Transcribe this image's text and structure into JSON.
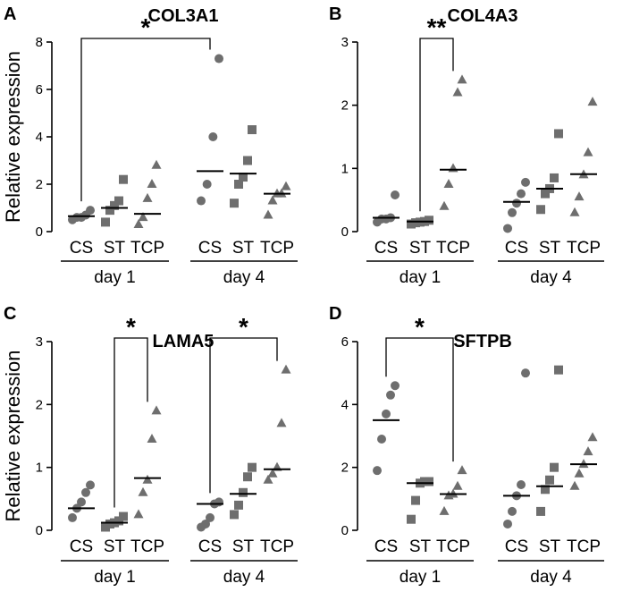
{
  "figure": {
    "y_axis_label": "Relative expression",
    "marker_color": "#6e6e6e"
  },
  "chart_data": [
    {
      "type": "scatter",
      "panel": "A",
      "title": "COL3A1",
      "ylabel": "Relative expression",
      "ylim": [
        0,
        8
      ],
      "yticks": [
        0,
        2,
        4,
        6,
        8
      ],
      "categories": [
        "CS",
        "ST",
        "TCP",
        "CS",
        "ST",
        "TCP"
      ],
      "groups": [
        "day 1",
        "day 4"
      ],
      "markers": [
        "circle",
        "square",
        "triangle",
        "circle",
        "square",
        "triangle"
      ],
      "points": [
        [
          0.5,
          0.6,
          0.6,
          0.7,
          0.9
        ],
        [
          0.4,
          0.9,
          1.1,
          1.3,
          2.2
        ],
        [
          0.3,
          0.6,
          1.4,
          2.0,
          2.8
        ],
        [
          1.3,
          2.0,
          4.0,
          7.3
        ],
        [
          1.2,
          2.0,
          2.3,
          3.0,
          4.3
        ],
        [
          0.7,
          1.3,
          1.6,
          1.6,
          1.9
        ]
      ],
      "medians": [
        0.65,
        1.0,
        0.75,
        2.55,
        2.45,
        1.6
      ],
      "significance": [
        {
          "from": 0,
          "to": 3,
          "label": "*"
        }
      ]
    },
    {
      "type": "scatter",
      "panel": "B",
      "title": "COL4A3",
      "ylabel": "",
      "ylim": [
        0,
        3
      ],
      "yticks": [
        0,
        1,
        2,
        3
      ],
      "categories": [
        "CS",
        "ST",
        "TCP",
        "CS",
        "ST",
        "TCP"
      ],
      "groups": [
        "day 1",
        "day 4"
      ],
      "markers": [
        "circle",
        "square",
        "triangle",
        "circle",
        "square",
        "triangle"
      ],
      "points": [
        [
          0.15,
          0.2,
          0.2,
          0.22,
          0.58
        ],
        [
          0.12,
          0.14,
          0.15,
          0.16,
          0.18
        ],
        [
          0.4,
          0.75,
          1.0,
          2.2,
          2.4
        ],
        [
          0.05,
          0.3,
          0.45,
          0.6,
          0.78
        ],
        [
          0.35,
          0.6,
          0.68,
          0.85,
          1.55
        ],
        [
          0.3,
          0.55,
          0.9,
          1.25,
          2.05
        ]
      ],
      "medians": [
        0.22,
        0.16,
        0.98,
        0.47,
        0.68,
        0.91
      ],
      "significance": [
        {
          "from": 1,
          "to": 2,
          "label": "**"
        }
      ]
    },
    {
      "type": "scatter",
      "panel": "C",
      "title": "LAMA5",
      "ylabel": "Relative expression",
      "ylim": [
        0,
        3
      ],
      "yticks": [
        0,
        1,
        2,
        3
      ],
      "categories": [
        "CS",
        "ST",
        "TCP",
        "CS",
        "ST",
        "TCP"
      ],
      "groups": [
        "day 1",
        "day 4"
      ],
      "markers": [
        "circle",
        "square",
        "triangle",
        "circle",
        "square",
        "triangle"
      ],
      "points": [
        [
          0.2,
          0.35,
          0.45,
          0.6,
          0.72
        ],
        [
          0.05,
          0.1,
          0.12,
          0.15,
          0.22
        ],
        [
          0.25,
          0.6,
          0.8,
          1.45,
          1.9
        ],
        [
          0.05,
          0.1,
          0.2,
          0.42,
          0.45
        ],
        [
          0.25,
          0.4,
          0.6,
          0.85,
          1.0
        ],
        [
          0.8,
          0.9,
          1.0,
          1.7,
          2.55
        ]
      ],
      "medians": [
        0.35,
        0.12,
        0.83,
        0.42,
        0.58,
        0.97
      ],
      "significance": [
        {
          "from": 1,
          "to": 2,
          "label": "*"
        },
        {
          "from": 3,
          "to": 5,
          "label": "*"
        }
      ]
    },
    {
      "type": "scatter",
      "panel": "D",
      "title": "SFTPB",
      "ylabel": "",
      "ylim": [
        0,
        6
      ],
      "yticks": [
        0,
        2,
        4,
        6
      ],
      "categories": [
        "CS",
        "ST",
        "TCP",
        "CS",
        "ST",
        "TCP"
      ],
      "groups": [
        "day 1",
        "day 4"
      ],
      "markers": [
        "circle",
        "square",
        "triangle",
        "circle",
        "square",
        "triangle"
      ],
      "points": [
        [
          1.9,
          2.9,
          3.7,
          4.3,
          4.6
        ],
        [
          0.35,
          0.95,
          1.5,
          1.55,
          1.55
        ],
        [
          0.6,
          1.1,
          1.15,
          1.4,
          1.9
        ],
        [
          0.2,
          0.6,
          1.1,
          1.45,
          5.0
        ],
        [
          0.6,
          1.3,
          1.6,
          2.0,
          5.1
        ],
        [
          1.4,
          1.8,
          2.1,
          2.5,
          2.95
        ]
      ],
      "medians": [
        3.5,
        1.5,
        1.15,
        1.1,
        1.4,
        2.1
      ],
      "significance": [
        {
          "from": 0,
          "to": 2,
          "label": "*"
        }
      ]
    }
  ]
}
